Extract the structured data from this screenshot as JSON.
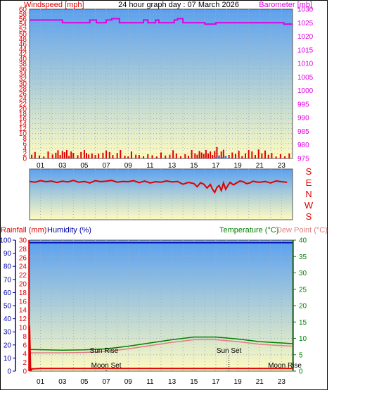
{
  "header": {
    "left_label": "Windspeed [mph]",
    "title": "24 hour graph day : 07 March 2026",
    "right_label": "Barometer [mb]"
  },
  "colors": {
    "wind": "#e00000",
    "barometer": "#e000e0",
    "rain": "#e00000",
    "humidity": "#0000aa",
    "temperature": "#008000",
    "dewpoint": "#e08080",
    "sky_top": "#5aa0f0",
    "sky_bottom": "#fffbc0"
  },
  "hour_labels": [
    "01",
    "03",
    "05",
    "07",
    "09",
    "11",
    "13",
    "15",
    "17",
    "19",
    "21",
    "23"
  ],
  "direction_labels": [
    "S",
    "E",
    "N",
    "W",
    "S"
  ],
  "lower": {
    "rain_label": "Rainfall (mm)",
    "humidity_label": "Humidity (%)",
    "temperature_label": "Temperature (°C)",
    "dewpoint_label": "Dew Point (°C)"
  },
  "annotations": [
    {
      "name": "sun-rise",
      "text": "Sun Rise",
      "hour": 6.8,
      "value_temp": 5.6,
      "marker": false
    },
    {
      "name": "sun-set",
      "text": "Sun Set",
      "hour": 18.2,
      "value_temp": 5.6,
      "marker": true
    },
    {
      "name": "moon-set",
      "text": "Moon Set",
      "hour": 7.0,
      "value_temp": 1.1,
      "marker": true
    },
    {
      "name": "moon-rise",
      "text": "Moon Rise",
      "hour": 23.3,
      "value_temp": 1.1,
      "marker": false
    }
  ],
  "chart_data": [
    {
      "type": "line",
      "name": "wind-barometer-panel",
      "x_range": [
        0,
        24
      ],
      "left_axis": {
        "label": "Windspeed [mph]",
        "ticks": [
          0,
          2,
          4,
          6,
          8,
          10,
          12,
          14,
          16,
          18,
          20,
          22,
          24,
          26,
          28,
          30,
          32,
          34,
          36,
          38,
          40,
          42,
          44,
          46,
          48,
          50,
          52,
          54,
          56,
          58,
          60
        ],
        "range": [
          0,
          60
        ]
      },
      "right_axis": {
        "label": "Barometer [mb]",
        "ticks": [
          975,
          980,
          985,
          990,
          995,
          1000,
          1005,
          1010,
          1015,
          1020,
          1025,
          1030
        ],
        "range": [
          975,
          1030
        ]
      },
      "series": [
        {
          "name": "Windspeed [mph]",
          "kind": "bars",
          "axis": "left",
          "x": [
            0.2,
            0.5,
            0.9,
            1.3,
            1.7,
            2.1,
            2.4,
            2.6,
            2.8,
            3.0,
            3.2,
            3.4,
            3.6,
            3.8,
            4.0,
            4.4,
            4.7,
            5.0,
            5.2,
            5.4,
            5.7,
            6.0,
            6.3,
            6.7,
            7.0,
            7.3,
            7.6,
            8.0,
            8.3,
            8.7,
            9.0,
            9.3,
            9.7,
            10.0,
            10.4,
            10.8,
            11.2,
            11.6,
            12.0,
            12.4,
            12.8,
            13.1,
            13.4,
            13.8,
            14.2,
            14.5,
            14.8,
            15.1,
            15.3,
            15.5,
            15.7,
            15.9,
            16.1,
            16.3,
            16.5,
            16.7,
            16.9,
            17.1,
            17.3,
            17.5,
            17.7,
            17.9,
            18.2,
            18.5,
            18.8,
            19.1,
            19.4,
            19.7,
            20.0,
            20.3,
            20.6,
            20.9,
            21.2,
            21.5,
            21.8,
            22.1,
            22.5,
            22.9,
            23.3,
            23.7
          ],
          "values": [
            1.5,
            2.6,
            1.2,
            0.8,
            2.8,
            1.6,
            2.3,
            3.3,
            1.4,
            3.0,
            2.5,
            3.4,
            1.0,
            2.8,
            2.2,
            1.3,
            2.6,
            3.4,
            2.2,
            1.6,
            2.0,
            1.4,
            1.9,
            2.3,
            3.2,
            2.6,
            1.4,
            2.2,
            3.4,
            1.1,
            0.8,
            2.8,
            1.5,
            1.4,
            0.9,
            1.7,
            1.3,
            0.8,
            2.4,
            1.2,
            1.5,
            3.3,
            2.0,
            0.9,
            1.7,
            1.1,
            3.4,
            2.0,
            1.5,
            3.0,
            2.4,
            1.8,
            3.4,
            2.0,
            2.8,
            1.4,
            3.0,
            4.6,
            1.2,
            2.8,
            3.5,
            0.9,
            1.4,
            2.4,
            1.8,
            3.1,
            1.0,
            2.0,
            3.4,
            2.8,
            1.4,
            3.6,
            2.0,
            3.2,
            1.5,
            2.2,
            0.8,
            1.7,
            0.9,
            2.0
          ]
        },
        {
          "name": "Gust",
          "kind": "bars",
          "axis": "left",
          "x": [
            17.0,
            17.3,
            17.6,
            17.9,
            18.2
          ],
          "values": [
            0.6,
            0.8,
            0.5,
            1.0,
            0.5
          ]
        },
        {
          "name": "Barometer [mb]",
          "kind": "step",
          "axis": "right",
          "x": [
            0,
            3.0,
            5.2,
            5.5,
            6.1,
            7.0,
            7.5,
            8.2,
            10.0,
            10.4,
            10.8,
            11.5,
            11.8,
            12.8,
            13.2,
            13.5,
            14.0,
            16.0,
            17.0,
            23.2,
            24
          ],
          "values": [
            1026,
            1025,
            1025,
            1026,
            1025,
            1026,
            1026.5,
            1025,
            1025,
            1026,
            1025,
            1026,
            1025,
            1025,
            1026,
            1026.5,
            1025,
            1024.5,
            1025,
            1024.5,
            1024.5
          ]
        }
      ]
    },
    {
      "type": "line",
      "name": "wind-direction-panel",
      "x_range": [
        0,
        24
      ],
      "axis_labels": [
        "S",
        "E",
        "N",
        "W",
        "S"
      ],
      "series": [
        {
          "name": "Wind direction",
          "x": [
            0,
            0.5,
            1.0,
            1.5,
            2.0,
            2.5,
            3.0,
            3.5,
            4.0,
            4.5,
            5.0,
            5.5,
            6.0,
            6.5,
            7.0,
            7.5,
            8.0,
            8.5,
            9.0,
            9.5,
            10.0,
            10.5,
            11.0,
            11.5,
            12.0,
            12.5,
            13.0,
            13.5,
            14.0,
            14.5,
            15.0,
            15.3,
            15.6,
            15.9,
            16.2,
            16.5,
            16.7,
            16.9,
            17.1,
            17.3,
            17.5,
            17.7,
            17.9,
            18.1,
            18.3,
            18.6,
            18.9,
            19.2,
            19.5,
            19.8,
            20.1,
            20.4,
            20.7,
            21.0,
            21.5,
            22.0,
            22.5,
            23.0,
            23.5
          ],
          "values": [
            0.98,
            1.04,
            0.92,
            1.0,
            0.95,
            1.06,
            0.96,
            1.02,
            0.9,
            1.05,
            0.98,
            1.1,
            0.92,
            1.0,
            0.96,
            0.9,
            1.04,
            0.98,
            1.0,
            0.92,
            1.08,
            0.95,
            1.1,
            1.0,
            1.04,
            0.94,
            1.02,
            0.98,
            1.2,
            1.06,
            1.15,
            1.4,
            1.08,
            1.2,
            1.5,
            1.22,
            1.6,
            1.85,
            1.45,
            1.3,
            1.7,
            1.1,
            1.6,
            1.3,
            1.05,
            1.25,
            1.1,
            0.95,
            1.0,
            1.15,
            1.1,
            0.96,
            1.02,
            1.05,
            0.98,
            1.1,
            0.94,
            1.0,
            1.05
          ]
        }
      ]
    },
    {
      "type": "line",
      "name": "rain-humidity-temperature-panel",
      "x_range": [
        0,
        24
      ],
      "axes": {
        "humidity": {
          "label": "Humidity (%)",
          "ticks": [
            0,
            10,
            20,
            30,
            40,
            50,
            60,
            70,
            80,
            90,
            100
          ],
          "range": [
            0,
            100
          ]
        },
        "rain": {
          "label": "Rainfall (mm)",
          "ticks": [
            0,
            2,
            4,
            6,
            8,
            10,
            12,
            14,
            16,
            18,
            20,
            22,
            24,
            26,
            28,
            30
          ],
          "range": [
            0,
            30
          ]
        },
        "temperature": {
          "label": "Temperature (°C)",
          "ticks": [
            0,
            5,
            10,
            15,
            20,
            25,
            30,
            35,
            40
          ],
          "range": [
            0,
            40
          ]
        }
      },
      "series": [
        {
          "name": "Humidity (%)",
          "axis": "humidity",
          "x": [
            0,
            24
          ],
          "values": [
            98,
            98
          ]
        },
        {
          "name": "Temperature (°C)",
          "axis": "temperature",
          "x": [
            0,
            3,
            5,
            7,
            9,
            11,
            13,
            15,
            17,
            19,
            21,
            23,
            24
          ],
          "values": [
            6.6,
            6.4,
            6.5,
            6.8,
            7.6,
            8.6,
            9.6,
            10.4,
            10.4,
            9.8,
            9.0,
            8.6,
            8.4
          ]
        },
        {
          "name": "Dew Point (°C)",
          "axis": "temperature",
          "x": [
            0,
            3,
            5,
            7,
            9,
            11,
            13,
            15,
            17,
            19,
            21,
            23,
            24
          ],
          "values": [
            5.6,
            5.6,
            5.7,
            6.0,
            6.8,
            7.8,
            8.8,
            9.6,
            9.6,
            9.0,
            8.2,
            7.8,
            7.6
          ]
        },
        {
          "name": "Rainfall (mm)",
          "axis": "rain",
          "x": [
            0,
            0.1,
            0.2,
            1,
            3,
            5,
            7,
            9,
            11,
            13,
            15,
            17,
            19,
            21,
            23,
            24
          ],
          "values": [
            10.4,
            0,
            0.5,
            0.6,
            0.6,
            0.6,
            0.6,
            0.6,
            0.6,
            0.6,
            0.6,
            0.6,
            0.6,
            0.6,
            0.6,
            0.6
          ]
        }
      ]
    }
  ]
}
